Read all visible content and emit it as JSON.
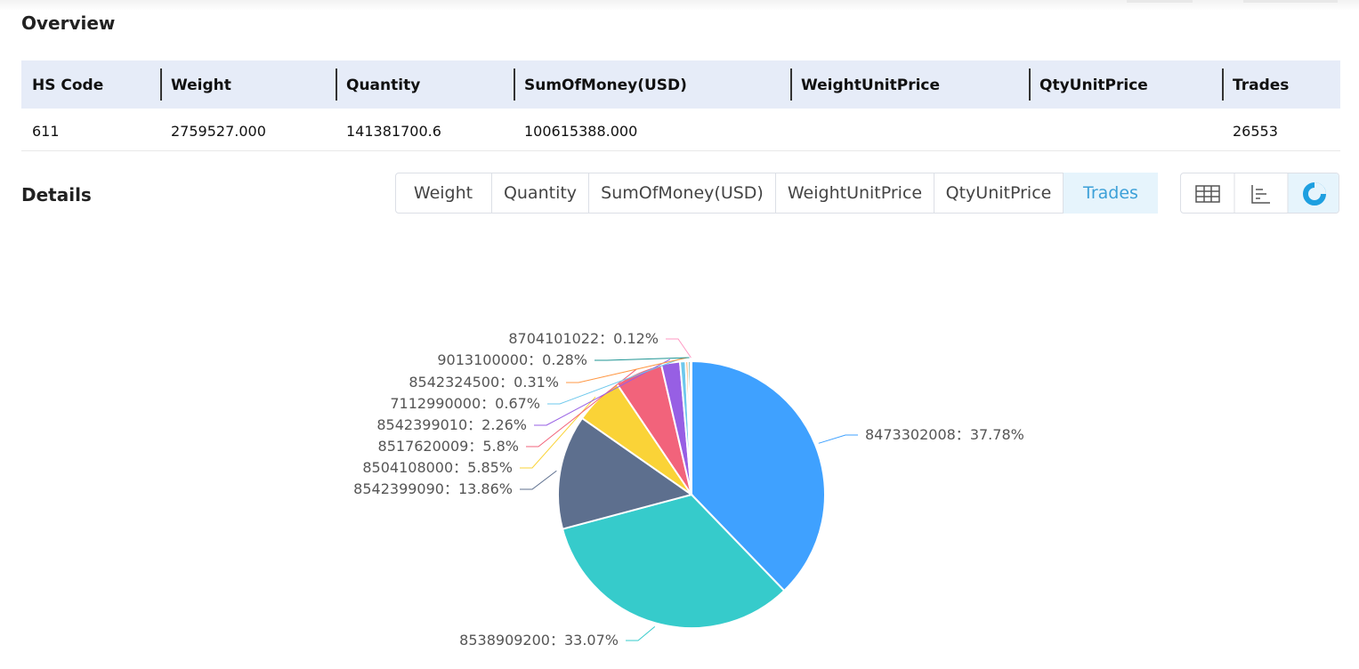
{
  "overview": {
    "title": "Overview",
    "table": {
      "headers": [
        "HS Code",
        "Weight",
        "Quantity",
        "SumOfMoney(USD)",
        "WeightUnitPrice",
        "QtyUnitPrice",
        "Trades"
      ],
      "rows": [
        {
          "hs_code": "611",
          "weight": "2759527.000",
          "quantity": "141381700.6",
          "sum_of_money": "100615388.000",
          "trades": "26553"
        }
      ]
    }
  },
  "details": {
    "title": "Details",
    "tabs": [
      "Weight",
      "Quantity",
      "SumOfMoney(USD)",
      "WeightUnitPrice",
      "QtyUnitPrice",
      "Trades"
    ],
    "active_tab": 5
  },
  "chart_data": {
    "type": "pie",
    "categories": [
      "8473302008",
      "8538909200",
      "8542399090",
      "8504108000",
      "8517620009",
      "8542399010",
      "7112990000",
      "8542324500",
      "9013100000",
      "8704101022"
    ],
    "values": [
      37.78,
      33.07,
      13.86,
      5.85,
      5.8,
      2.26,
      0.67,
      0.31,
      0.28,
      0.12
    ],
    "value_labels": [
      "37.78%",
      "33.07%",
      "13.86%",
      "5.85%",
      "5.8%",
      "2.26%",
      "0.67%",
      "0.31%",
      "0.28%",
      "0.12%"
    ],
    "label_separator": "：",
    "colors": [
      "#3fa1ff",
      "#36cbcb",
      "#5d6f8e",
      "#fad337",
      "#f2637b",
      "#975fe4",
      "#6dc8ec",
      "#ff9845",
      "#1e9493",
      "#ff99c3"
    ]
  }
}
